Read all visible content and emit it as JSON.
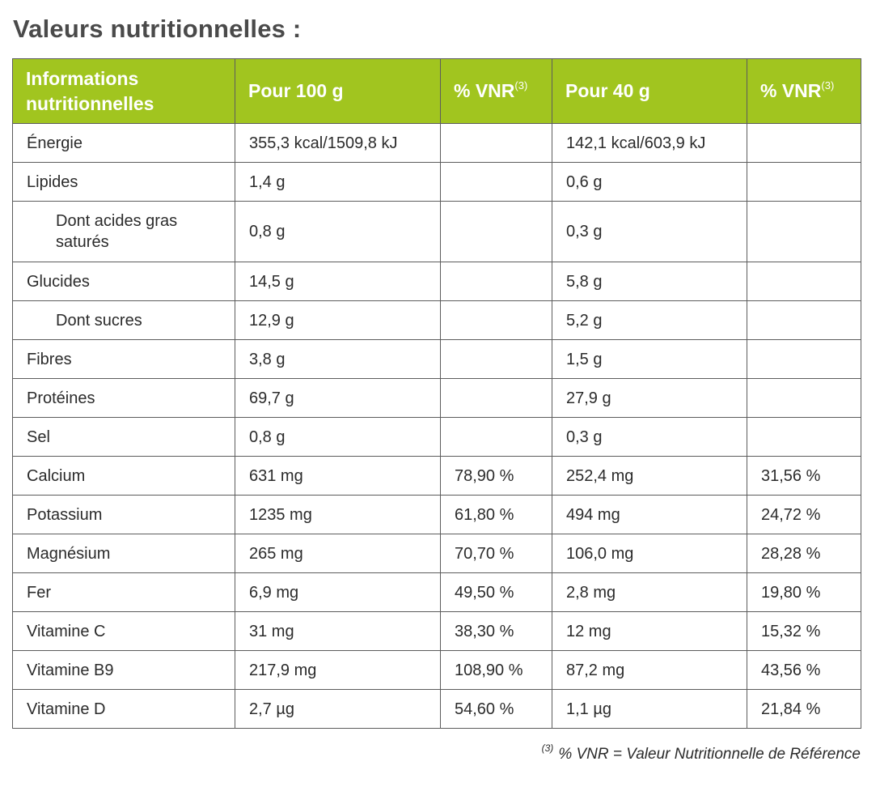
{
  "title": "Valeurs nutritionnelles :",
  "table": {
    "headers": {
      "info_line1": "Informations",
      "info_line2": "nutritionnelles",
      "per100": "Pour 100 g",
      "vnr1": "% VNR",
      "vnr1_sup": "(3)",
      "per40": "Pour 40 g",
      "vnr2": "% VNR",
      "vnr2_sup": "(3)"
    },
    "rows": [
      {
        "name": "Énergie",
        "per100": "355,3 kcal/1509,8 kJ",
        "vnr100": "",
        "per40": "142,1 kcal/603,9 kJ",
        "vnr40": ""
      },
      {
        "name": "Lipides",
        "per100": "1,4 g",
        "vnr100": "",
        "per40": "0,6 g",
        "vnr40": ""
      },
      {
        "name_line1": "Dont acides gras",
        "name_line2": "saturés",
        "per100": "0,8 g",
        "vnr100": "",
        "per40": "0,3 g",
        "vnr40": ""
      },
      {
        "name": "Glucides",
        "per100": "14,5 g",
        "vnr100": "",
        "per40": "5,8 g",
        "vnr40": ""
      },
      {
        "name": "Dont sucres",
        "per100": "12,9 g",
        "vnr100": "",
        "per40": "5,2 g",
        "vnr40": ""
      },
      {
        "name": "Fibres",
        "per100": "3,8 g",
        "vnr100": "",
        "per40": "1,5 g",
        "vnr40": ""
      },
      {
        "name": "Protéines",
        "per100": "69,7 g",
        "vnr100": "",
        "per40": "27,9 g",
        "vnr40": ""
      },
      {
        "name": "Sel",
        "per100": "0,8 g",
        "vnr100": "",
        "per40": "0,3 g",
        "vnr40": ""
      },
      {
        "name": "Calcium",
        "per100": "631 mg",
        "vnr100": "78,90 %",
        "per40": "252,4 mg",
        "vnr40": "31,56 %"
      },
      {
        "name": "Potassium",
        "per100": "1235 mg",
        "vnr100": "61,80 %",
        "per40": "494 mg",
        "vnr40": "24,72 %"
      },
      {
        "name": "Magnésium",
        "per100": "265 mg",
        "vnr100": "70,70 %",
        "per40": "106,0 mg",
        "vnr40": "28,28 %"
      },
      {
        "name": "Fer",
        "per100": "6,9 mg",
        "vnr100": "49,50 %",
        "per40": "2,8 mg",
        "vnr40": "19,80 %"
      },
      {
        "name": "Vitamine C",
        "per100": "31 mg",
        "vnr100": "38,30 %",
        "per40": "12 mg",
        "vnr40": "15,32 %"
      },
      {
        "name": "Vitamine B9",
        "per100": "217,9 mg",
        "vnr100": "108,90 %",
        "per40": "87,2 mg",
        "vnr40": "43,56 %"
      },
      {
        "name": "Vitamine D",
        "per100": "2,7 µg",
        "vnr100": "54,60 %",
        "per40": "1,1 µg",
        "vnr40": "21,84 %"
      }
    ]
  },
  "footnote": {
    "sup": "(3)",
    "text": "% VNR = Valeur Nutritionnelle de Référence"
  },
  "colors": {
    "header_bg": "#a1c51f",
    "header_text": "#ffffff",
    "border": "#5c5c5c",
    "title_text": "#4a4a4a"
  }
}
